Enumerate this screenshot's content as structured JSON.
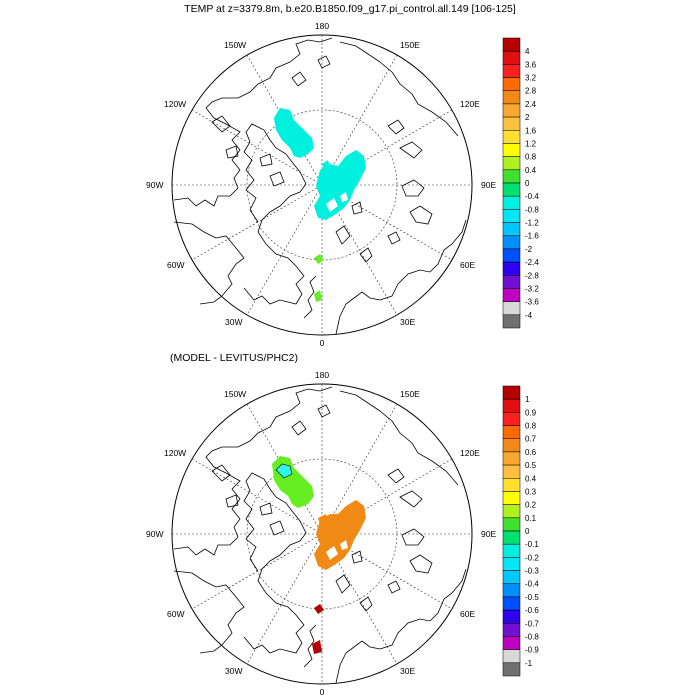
{
  "colors": {
    "coast": "#000000",
    "grid": "#333333",
    "cyan_patch": "#00f0e0",
    "cyan_patch_light": "#2ef8ea",
    "green_patch": "#66ee22",
    "orange_patch": "#f08a14",
    "darkred_patch": "#b40000"
  },
  "top_panel": {
    "title": "TEMP at z=3379.8m, b.e20.B1850.f09_g17.pi_control.all.149 [106-125]",
    "lon_labels": {
      "top": "180",
      "bottom": "0",
      "left": "90W",
      "right": "90E",
      "ul1": "150W",
      "ul2": "120W",
      "ur1": "150E",
      "ur2": "120E",
      "ll1": "60W",
      "ll2": "30W",
      "lr1": "60E",
      "lr2": "30E"
    },
    "colorbar": {
      "labels": [
        "4",
        "3.6",
        "3.2",
        "2.8",
        "2.4",
        "2",
        "1.6",
        "1.2",
        "0.8",
        "0.4",
        "0",
        "-0.4",
        "-0.8",
        "-1.2",
        "-1.6",
        "-2",
        "-2.4",
        "-2.8",
        "-3.2",
        "-3.6",
        "-4"
      ],
      "colors": [
        "#b40000",
        "#e01010",
        "#ff2020",
        "#ff6a00",
        "#f08a14",
        "#f8a830",
        "#ffc040",
        "#ffe030",
        "#ffff00",
        "#b0f020",
        "#40e030",
        "#00e070",
        "#00f0e0",
        "#00e8f8",
        "#00c8ff",
        "#0090ff",
        "#0050ff",
        "#3000f0",
        "#7010d0",
        "#c000c0",
        "#d8d8d8",
        "#707070"
      ]
    }
  },
  "bottom_panel": {
    "title": "(MODEL - LEVITUS/PHC2)",
    "lon_labels": {
      "top": "180",
      "bottom": "0",
      "left": "90W",
      "right": "90E",
      "ul1": "150W",
      "ul2": "120W",
      "ur1": "150E",
      "ur2": "120E",
      "ll1": "60W",
      "ll2": "30W",
      "lr1": "60E",
      "lr2": "30E"
    },
    "colorbar": {
      "labels": [
        "1",
        "0.9",
        "0.8",
        "0.7",
        "0.6",
        "0.5",
        "0.4",
        "0.3",
        "0.2",
        "0.1",
        "0",
        "-0.1",
        "-0.2",
        "-0.3",
        "-0.4",
        "-0.5",
        "-0.6",
        "-0.7",
        "-0.8",
        "-0.9",
        "-1"
      ],
      "colors": [
        "#b40000",
        "#e01010",
        "#ff2020",
        "#ff6a00",
        "#f08a14",
        "#f8a830",
        "#ffc040",
        "#ffe030",
        "#ffff00",
        "#b0f020",
        "#40e030",
        "#00e070",
        "#00f0e0",
        "#00e8f8",
        "#00c8ff",
        "#0090ff",
        "#0050ff",
        "#3000f0",
        "#7010d0",
        "#c000c0",
        "#d8d8d8",
        "#707070"
      ]
    }
  }
}
